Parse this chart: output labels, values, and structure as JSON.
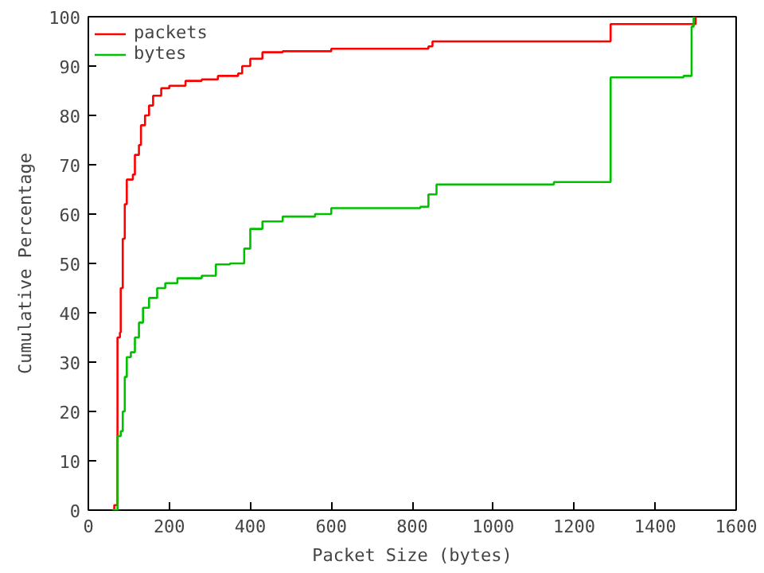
{
  "chart_data": {
    "type": "step",
    "xlabel": "Packet Size (bytes)",
    "ylabel": "Cumulative Percentage",
    "xlim": [
      0,
      1600
    ],
    "ylim": [
      0,
      100
    ],
    "xticks": [
      0,
      200,
      400,
      600,
      800,
      1000,
      1200,
      1400,
      1600
    ],
    "yticks": [
      0,
      10,
      20,
      30,
      40,
      50,
      60,
      70,
      80,
      90,
      100
    ],
    "grid": false,
    "legend": "top left",
    "line_style": "solid",
    "series": [
      {
        "name": "packets",
        "color": "#ff0000",
        "x": [
          60,
          64,
          72,
          78,
          80,
          85,
          90,
          95,
          110,
          115,
          125,
          130,
          140,
          150,
          160,
          180,
          200,
          240,
          280,
          320,
          370,
          380,
          400,
          430,
          480,
          600,
          840,
          850,
          1290,
          1490,
          1500
        ],
        "values": [
          0,
          1,
          35,
          36,
          45,
          55,
          62,
          67,
          68,
          72,
          74,
          78,
          80,
          82,
          84,
          85.5,
          86,
          87,
          87.3,
          88,
          88.5,
          90,
          91.5,
          92.8,
          93,
          93.5,
          94,
          95,
          98.5,
          98.5,
          100
        ]
      },
      {
        "name": "bytes",
        "color": "#00c000",
        "x": [
          60,
          72,
          80,
          85,
          90,
          95,
          105,
          115,
          125,
          135,
          150,
          170,
          190,
          220,
          280,
          315,
          350,
          385,
          400,
          430,
          480,
          560,
          600,
          820,
          840,
          860,
          1000,
          1150,
          1290,
          1470,
          1490,
          1495
        ],
        "values": [
          0,
          15,
          16,
          20,
          27,
          31,
          32,
          35,
          38,
          41,
          43,
          45,
          46,
          47,
          47.5,
          49.8,
          50,
          53,
          57,
          58.5,
          59.5,
          60,
          61.2,
          61.5,
          64,
          66,
          66,
          66.5,
          87.7,
          88,
          98,
          100
        ]
      }
    ]
  }
}
